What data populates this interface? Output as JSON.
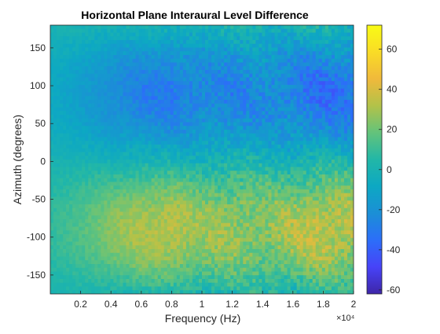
{
  "chart_data": {
    "type": "heatmap",
    "title": "Horizontal Plane Interaural Level Difference",
    "xlabel": "Frequency (Hz)",
    "ylabel": "Azimuth (degrees)",
    "x_exponent_label": "×10⁴",
    "xlim": [
      0,
      20000
    ],
    "ylim": [
      -175,
      180
    ],
    "x_ticks": [
      2000,
      4000,
      6000,
      8000,
      10000,
      12000,
      14000,
      16000,
      18000,
      20000
    ],
    "x_tick_labels": [
      "0.2",
      "0.4",
      "0.6",
      "0.8",
      "1",
      "1.2",
      "1.4",
      "1.6",
      "1.8",
      "2"
    ],
    "y_ticks": [
      -150,
      -100,
      -50,
      0,
      50,
      100,
      150
    ],
    "y_tick_labels": [
      "-150",
      "-100",
      "-50",
      "0",
      "50",
      "100",
      "150"
    ],
    "colorbar": {
      "colormap": "parula",
      "clim": [
        -62,
        72
      ],
      "ticks": [
        -60,
        -40,
        -20,
        0,
        20,
        40,
        60
      ],
      "tick_labels": [
        "-60",
        "-40",
        "-20",
        "0",
        "20",
        "40",
        "60"
      ],
      "colors": [
        "#3e26a8",
        "#4743f8",
        "#2c6ef9",
        "#1b8fd6",
        "#0da8c3",
        "#22b7a7",
        "#63c37b",
        "#b2c249",
        "#f0b93b",
        "#f9dc26",
        "#f9fb15"
      ]
    },
    "grid": false,
    "frequency_profile": {
      "frequencies": [
        0,
        2000,
        4000,
        6000,
        8000,
        10000,
        12000,
        14000,
        16000,
        18000,
        20000
      ],
      "ild_at_minus_90_deg": [
        8,
        15,
        24,
        31,
        33,
        27,
        28,
        24,
        30,
        36,
        33
      ],
      "ild_at_plus_90_deg": [
        -7,
        -14,
        -22,
        -28,
        -30,
        -25,
        -27,
        -23,
        -28,
        -33,
        -31
      ]
    }
  }
}
